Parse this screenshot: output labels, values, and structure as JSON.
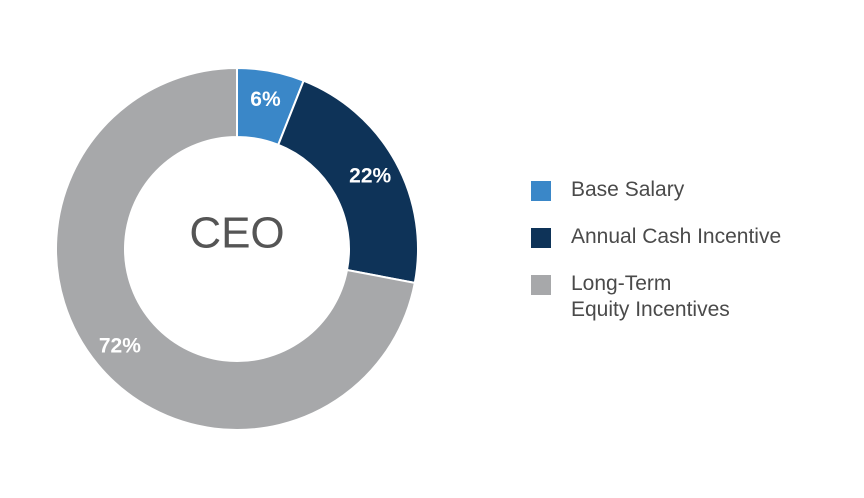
{
  "chart_data": {
    "type": "pie",
    "style": "donut",
    "center_label": "CEO",
    "categories": [
      "Base Salary",
      "Annual Cash Incentive",
      "Long-Term Equity Incentives"
    ],
    "values": [
      6,
      22,
      72
    ],
    "value_labels": [
      "6%",
      "22%",
      "72%"
    ],
    "colors": [
      "#3a87c8",
      "#0e3358",
      "#a7a8aa"
    ],
    "legend": [
      {
        "label_lines": [
          "Base Salary"
        ],
        "color": "#3a87c8"
      },
      {
        "label_lines": [
          "Annual Cash Incentive"
        ],
        "color": "#0e3358"
      },
      {
        "label_lines": [
          "Long-Term",
          "Equity Incentives"
        ],
        "color": "#a7a8aa"
      }
    ],
    "legend_position": "right"
  }
}
